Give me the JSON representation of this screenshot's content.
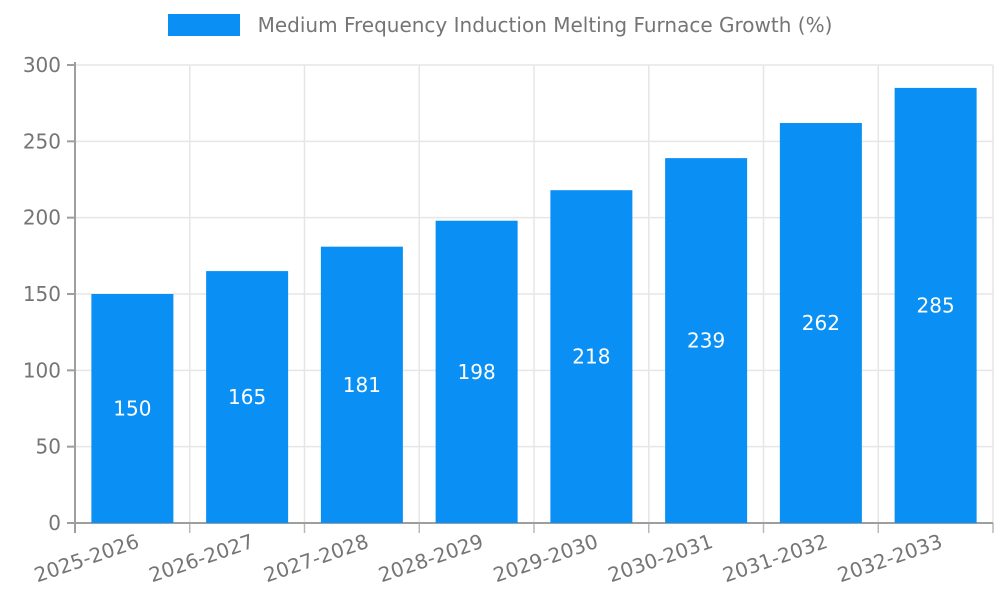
{
  "chart_data": {
    "type": "bar",
    "title": "Medium Frequency Induction Melting Furnace Growth (%)",
    "categories": [
      "2025-2026",
      "2026-2027",
      "2027-2028",
      "2028-2029",
      "2029-2030",
      "2030-2031",
      "2031-2032",
      "2032-2033"
    ],
    "values": [
      150,
      165,
      181,
      198,
      218,
      239,
      262,
      285
    ],
    "xlabel": "",
    "ylabel": "",
    "ylim": [
      0,
      300
    ],
    "ytick_step": 50,
    "ytick_labels": [
      "0",
      "50",
      "100",
      "150",
      "200",
      "250",
      "300"
    ],
    "grid": true,
    "legend_position": "top-center",
    "bar_color": "#0a90f4",
    "value_label_color": "#ffffff",
    "grid_color": "#e6e6e6",
    "axis_color": "#9e9e9e",
    "minor_tick_color": "#b8b8b8",
    "text_color": "#757575"
  }
}
